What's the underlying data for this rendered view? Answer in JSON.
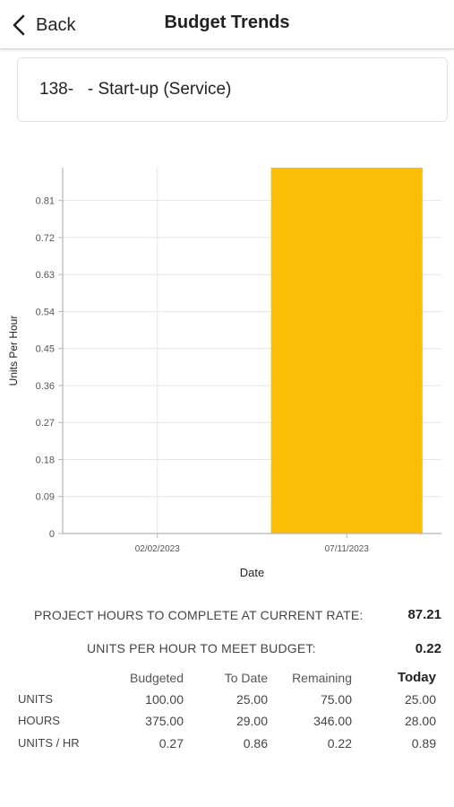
{
  "nav": {
    "back_label": "Back",
    "title": "Budget Trends"
  },
  "task": {
    "label": "138-   - Start-up (Service)"
  },
  "chart_data": {
    "type": "bar",
    "categories": [
      "02/02/2023",
      "07/11/2023"
    ],
    "values": [
      0,
      0.89
    ],
    "xlabel": "Date",
    "ylabel": "Units Per Hour",
    "ylim": [
      0,
      0.89
    ],
    "yticks": [
      "0",
      "0.09",
      "0.18",
      "0.27",
      "0.36",
      "0.45",
      "0.54",
      "0.63",
      "0.72",
      "0.81"
    ],
    "ytick_values": [
      0,
      0.09,
      0.18,
      0.27,
      0.36,
      0.45,
      0.54,
      0.63,
      0.72,
      0.81
    ],
    "bar_color": "#FBBE07",
    "grid": true
  },
  "stats": {
    "hours_to_complete_label": "PROJECT HOURS TO COMPLETE AT CURRENT RATE:",
    "hours_to_complete_value": "87.21",
    "units_per_hour_label": "UNITS PER HOUR TO MEET BUDGET:",
    "units_per_hour_value": "0.22"
  },
  "table": {
    "headers": [
      "Budgeted",
      "To Date",
      "Remaining",
      "Today"
    ],
    "rows": [
      {
        "label": "UNITS",
        "values": [
          "100.00",
          "25.00",
          "75.00",
          "25.00"
        ]
      },
      {
        "label": "HOURS",
        "values": [
          "375.00",
          "29.00",
          "346.00",
          "28.00"
        ]
      },
      {
        "label": "UNITS / HR",
        "values": [
          "0.27",
          "0.86",
          "0.22",
          "0.89"
        ]
      }
    ]
  }
}
